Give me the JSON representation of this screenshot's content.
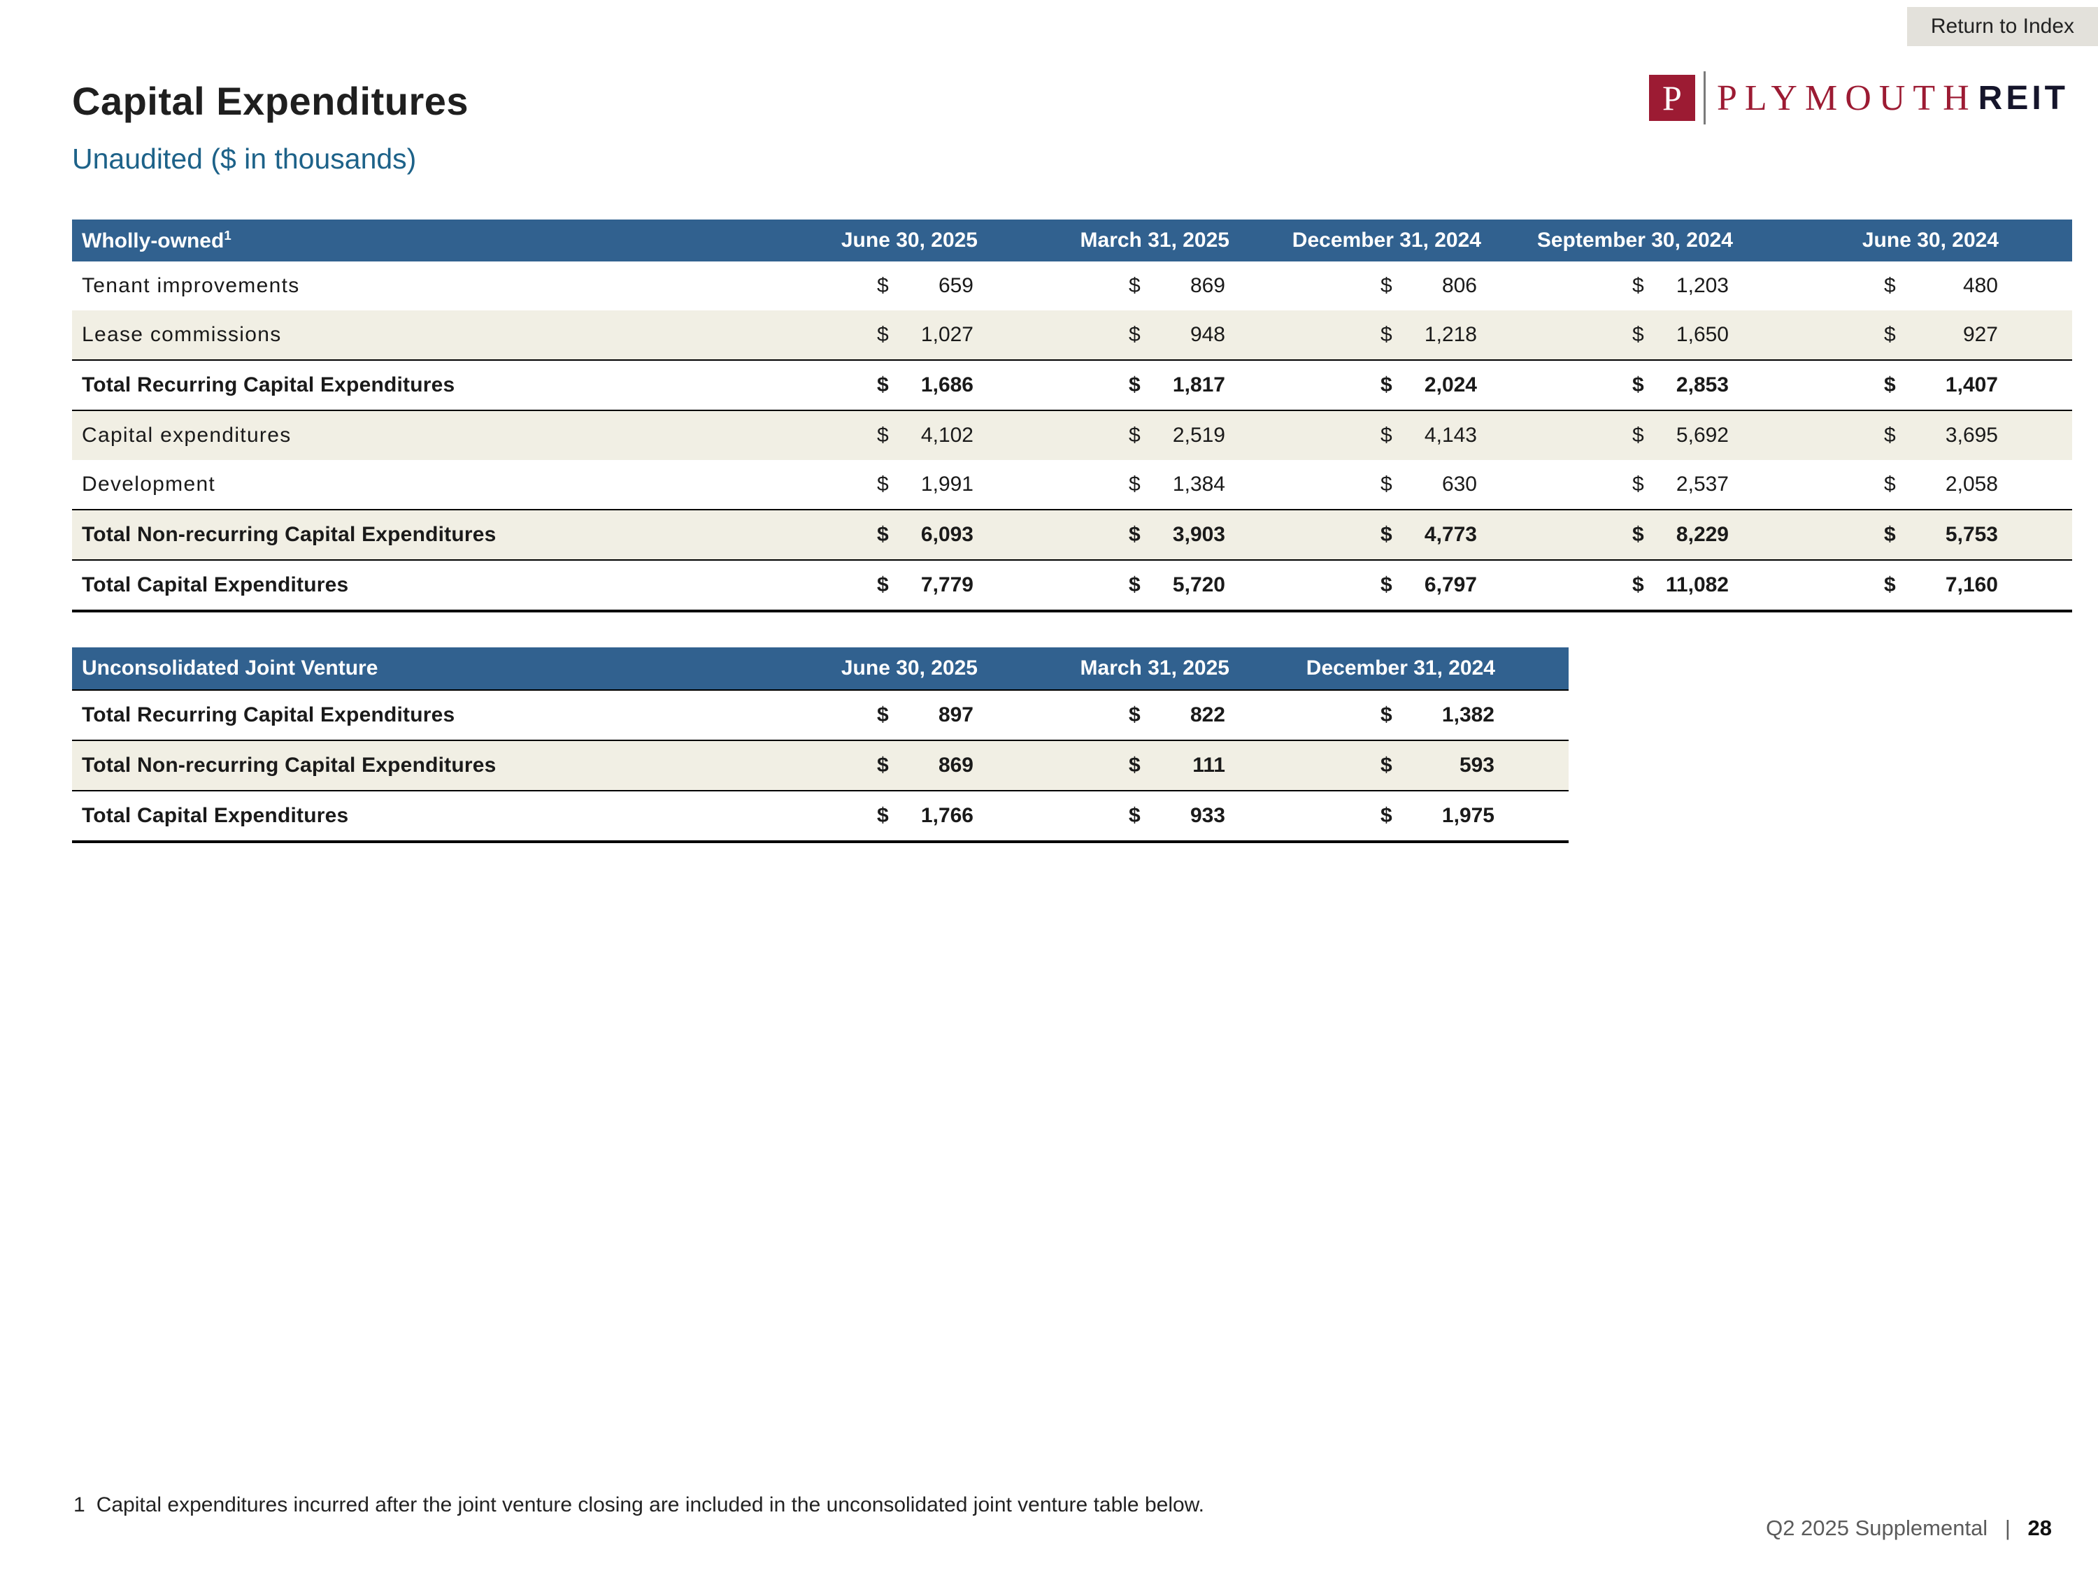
{
  "colors": {
    "table_header_bg": "#31618F",
    "shaded_row_bg": "#F1EFE4",
    "brand_maroon": "#9C1B33",
    "subtitle_blue": "#1D6289"
  },
  "page": {
    "return_to_index": "Return to Index",
    "title": "Capital Expenditures",
    "subtitle": "Unaudited ($ in thousands)",
    "footnote_number": "1",
    "footnote_text": "Capital expenditures incurred after the joint venture closing are included in the unconsolidated joint venture table below.",
    "footer_label": "Q2 2025 Supplemental",
    "footer_separator": "|",
    "footer_page_number": "28"
  },
  "logo": {
    "letter": "P",
    "name": "PLYMOUTH",
    "suffix": "REIT"
  },
  "tables": [
    {
      "title": "Wholly-owned",
      "title_superscript": "1",
      "currency": "$",
      "columns": [
        "June 30, 2025",
        "March 31, 2025",
        "December 31, 2024",
        "September 30, 2024",
        "June 30, 2024"
      ],
      "rows": [
        {
          "label": "Tenant improvements",
          "bold": false,
          "shaded": false,
          "final": false,
          "values": [
            "659",
            "869",
            "806",
            "1,203",
            "480"
          ]
        },
        {
          "label": "Lease commissions",
          "bold": false,
          "shaded": true,
          "final": false,
          "values": [
            "1,027",
            "948",
            "1,218",
            "1,650",
            "927"
          ]
        },
        {
          "label": "Total Recurring Capital Expenditures",
          "bold": true,
          "shaded": false,
          "final": false,
          "values": [
            "1,686",
            "1,817",
            "2,024",
            "2,853",
            "1,407"
          ]
        },
        {
          "label": "Capital expenditures",
          "bold": false,
          "shaded": true,
          "final": false,
          "values": [
            "4,102",
            "2,519",
            "4,143",
            "5,692",
            "3,695"
          ]
        },
        {
          "label": "Development",
          "bold": false,
          "shaded": false,
          "final": false,
          "values": [
            "1,991",
            "1,384",
            "630",
            "2,537",
            "2,058"
          ]
        },
        {
          "label": "Total Non-recurring Capital Expenditures",
          "bold": true,
          "shaded": true,
          "final": false,
          "values": [
            "6,093",
            "3,903",
            "4,773",
            "8,229",
            "5,753"
          ]
        },
        {
          "label": "Total Capital Expenditures",
          "bold": true,
          "shaded": false,
          "final": true,
          "values": [
            "7,779",
            "5,720",
            "6,797",
            "11,082",
            "7,160"
          ]
        }
      ]
    },
    {
      "title": "Unconsolidated Joint Venture",
      "title_superscript": "",
      "currency": "$",
      "columns": [
        "June 30, 2025",
        "March 31, 2025",
        "December 31, 2024"
      ],
      "rows": [
        {
          "label": "Total Recurring Capital Expenditures",
          "bold": true,
          "shaded": false,
          "final": false,
          "values": [
            "897",
            "822",
            "1,382"
          ]
        },
        {
          "label": "Total Non-recurring Capital Expenditures",
          "bold": true,
          "shaded": true,
          "final": false,
          "values": [
            "869",
            "111",
            "593"
          ]
        },
        {
          "label": "Total Capital Expenditures",
          "bold": true,
          "shaded": false,
          "final": true,
          "values": [
            "1,766",
            "933",
            "1,975"
          ]
        }
      ]
    }
  ]
}
